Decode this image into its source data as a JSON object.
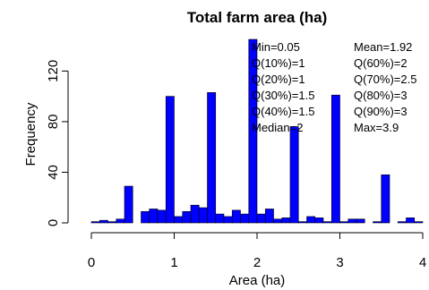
{
  "chart_data": {
    "type": "bar",
    "title": "Total farm area (ha)",
    "xlabel": "Area (ha)",
    "ylabel": "Frequency",
    "xlim": [
      0,
      4
    ],
    "ylim": [
      0,
      145
    ],
    "x_ticks": [
      "0",
      "1",
      "2",
      "3",
      "4"
    ],
    "y_ticks": [
      "0",
      "40",
      "80",
      "120"
    ],
    "bar_color": "#0000ff",
    "bin_width": 0.1,
    "x": [
      0.05,
      0.15,
      0.25,
      0.35,
      0.45,
      0.55,
      0.65,
      0.75,
      0.85,
      0.95,
      1.05,
      1.15,
      1.25,
      1.35,
      1.45,
      1.55,
      1.65,
      1.75,
      1.85,
      1.95,
      2.05,
      2.15,
      2.25,
      2.35,
      2.45,
      2.55,
      2.65,
      2.75,
      2.85,
      2.95,
      3.05,
      3.15,
      3.25,
      3.35,
      3.45,
      3.55,
      3.65,
      3.75,
      3.85,
      3.95
    ],
    "values": [
      1,
      2,
      1,
      3,
      29,
      0,
      9,
      11,
      10,
      100,
      5,
      9,
      14,
      12,
      103,
      7,
      5,
      10,
      7,
      145,
      7,
      11,
      3,
      4,
      76,
      1,
      5,
      4,
      1,
      101,
      1,
      3,
      3,
      0,
      1,
      38,
      0,
      1,
      4,
      1
    ]
  },
  "stats": {
    "left": [
      "Min=0.05",
      "Q(10%)=1",
      "Q(20%)=1",
      "Q(30%)=1.5",
      "Q(40%)=1.5",
      "Median=2"
    ],
    "right": [
      "Mean=1.92",
      "Q(60%)=2",
      "Q(70%)=2.5",
      "Q(80%)=3",
      "Q(90%)=3",
      "Max=3.9"
    ]
  }
}
